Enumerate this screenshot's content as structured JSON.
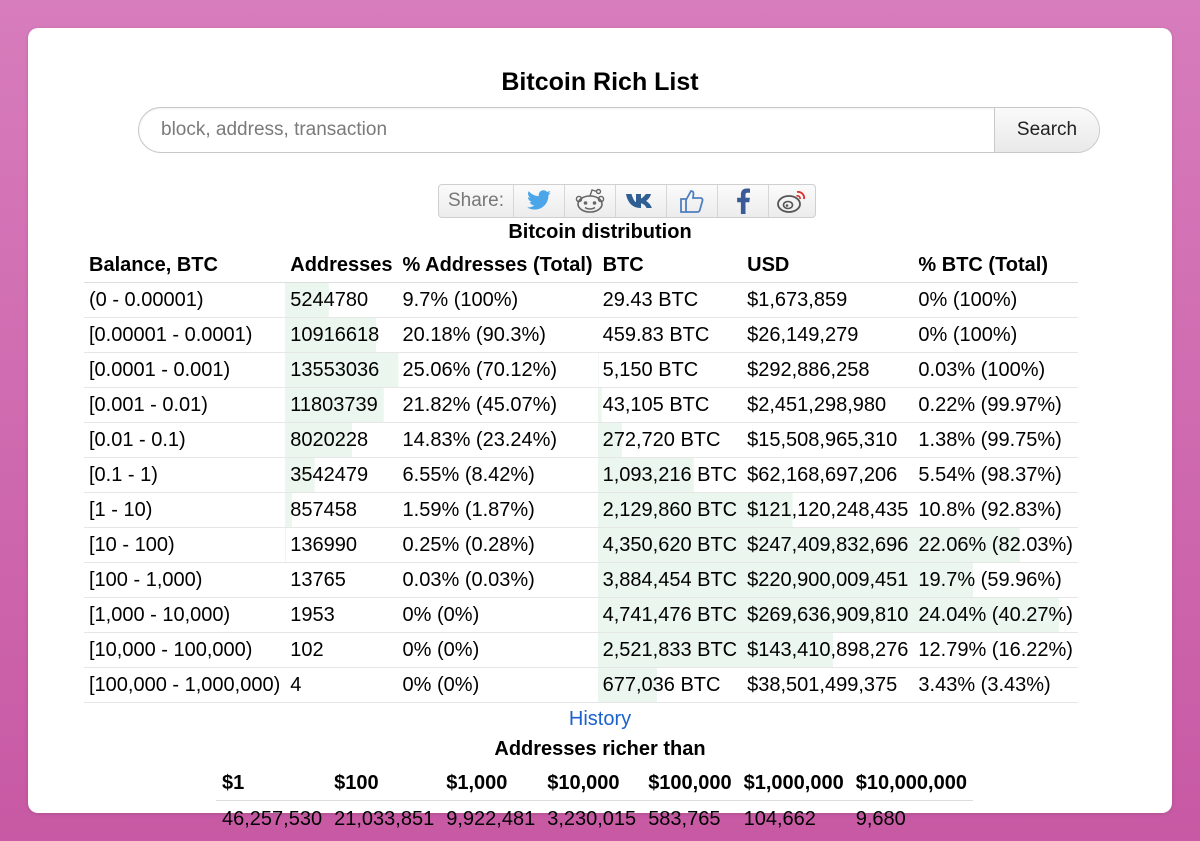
{
  "page": {
    "title": "Bitcoin Rich List"
  },
  "search": {
    "placeholder": "block, address, transaction",
    "button_label": "Search"
  },
  "share": {
    "label": "Share:",
    "icons": [
      "twitter-icon",
      "reddit-icon",
      "vk-icon",
      "like-icon",
      "facebook-icon",
      "weibo-icon"
    ]
  },
  "distribution": {
    "caption": "Bitcoin distribution",
    "headers": [
      "Balance, BTC",
      "Addresses",
      "% Addresses (Total)",
      "BTC",
      "USD",
      "% BTC (Total)"
    ],
    "rows": [
      {
        "balance": "(0 - 0.00001)",
        "addresses": "5244780",
        "pct_addresses": "9.7% (100%)",
        "btc": "29.43 BTC",
        "usd": "$1,673,859",
        "pct_btc": "0% (100%)",
        "addr_share": 0.097,
        "btc_share": 0
      },
      {
        "balance": "[0.00001 - 0.0001)",
        "addresses": "10916618",
        "pct_addresses": "20.18% (90.3%)",
        "btc": "459.83 BTC",
        "usd": "$26,149,279",
        "pct_btc": "0% (100%)",
        "addr_share": 0.2018,
        "btc_share": 0
      },
      {
        "balance": "[0.0001 - 0.001)",
        "addresses": "13553036",
        "pct_addresses": "25.06% (70.12%)",
        "btc": "5,150 BTC",
        "usd": "$292,886,258",
        "pct_btc": "0.03% (100%)",
        "addr_share": 0.2506,
        "btc_share": 0.0003
      },
      {
        "balance": "[0.001 - 0.01)",
        "addresses": "11803739",
        "pct_addresses": "21.82% (45.07%)",
        "btc": "43,105 BTC",
        "usd": "$2,451,298,980",
        "pct_btc": "0.22% (99.97%)",
        "addr_share": 0.2182,
        "btc_share": 0.0022
      },
      {
        "balance": "[0.01 - 0.1)",
        "addresses": "8020228",
        "pct_addresses": "14.83% (23.24%)",
        "btc": "272,720 BTC",
        "usd": "$15,508,965,310",
        "pct_btc": "1.38% (99.75%)",
        "addr_share": 0.1483,
        "btc_share": 0.0138
      },
      {
        "balance": "[0.1 - 1)",
        "addresses": "3542479",
        "pct_addresses": "6.55% (8.42%)",
        "btc": "1,093,216 BTC",
        "usd": "$62,168,697,206",
        "pct_btc": "5.54% (98.37%)",
        "addr_share": 0.0655,
        "btc_share": 0.0554
      },
      {
        "balance": "[1 - 10)",
        "addresses": "857458",
        "pct_addresses": "1.59% (1.87%)",
        "btc": "2,129,860 BTC",
        "usd": "$121,120,248,435",
        "pct_btc": "10.8% (92.83%)",
        "addr_share": 0.0159,
        "btc_share": 0.108
      },
      {
        "balance": "[10 - 100)",
        "addresses": "136990",
        "pct_addresses": "0.25% (0.28%)",
        "btc": "4,350,620 BTC",
        "usd": "$247,409,832,696",
        "pct_btc": "22.06% (82.03%)",
        "addr_share": 0.0025,
        "btc_share": 0.2206
      },
      {
        "balance": "[100 - 1,000)",
        "addresses": "13765",
        "pct_addresses": "0.03% (0.03%)",
        "btc": "3,884,454 BTC",
        "usd": "$220,900,009,451",
        "pct_btc": "19.7% (59.96%)",
        "addr_share": 0.0003,
        "btc_share": 0.197
      },
      {
        "balance": "[1,000 - 10,000)",
        "addresses": "1953",
        "pct_addresses": "0% (0%)",
        "btc": "4,741,476 BTC",
        "usd": "$269,636,909,810",
        "pct_btc": "24.04% (40.27%)",
        "addr_share": 0,
        "btc_share": 0.2404
      },
      {
        "balance": "[10,000 - 100,000)",
        "addresses": "102",
        "pct_addresses": "0% (0%)",
        "btc": "2,521,833 BTC",
        "usd": "$143,410,898,276",
        "pct_btc": "12.79% (16.22%)",
        "addr_share": 0,
        "btc_share": 0.1279
      },
      {
        "balance": "[100,000 - 1,000,000)",
        "addresses": "4",
        "pct_addresses": "0% (0%)",
        "btc": "677,036 BTC",
        "usd": "$38,501,499,375",
        "pct_btc": "3.43% (3.43%)",
        "addr_share": 0,
        "btc_share": 0.0343
      }
    ]
  },
  "history_link": "History",
  "richer_than": {
    "caption": "Addresses richer than",
    "headers": [
      "$1",
      "$100",
      "$1,000",
      "$10,000",
      "$100,000",
      "$1,000,000",
      "$10,000,000"
    ],
    "values": [
      "46,257,530",
      "21,033,851",
      "9,922,481",
      "3,230,015",
      "583,765",
      "104,662",
      "9,680"
    ]
  },
  "colors": {
    "bar_fill": "#eaf6ee",
    "link": "#1a62cc"
  }
}
